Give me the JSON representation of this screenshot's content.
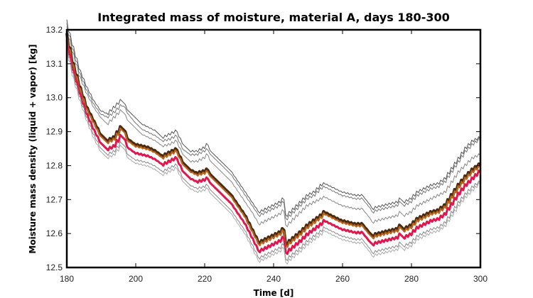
{
  "chart_data": {
    "type": "line",
    "title": "Integrated mass of moisture, material A, days 180-300",
    "xlabel": "Time [d]",
    "ylabel": "Moisture mass density (liquid + vapor) [kg]",
    "xlim": [
      180,
      300
    ],
    "ylim": [
      12.5,
      13.2
    ],
    "xticks": [
      180,
      200,
      220,
      240,
      260,
      280,
      300
    ],
    "xtick_labels": [
      "180",
      "200",
      "220",
      "240",
      "260",
      "280",
      "300"
    ],
    "yticks": [
      12.5,
      12.6,
      12.7,
      12.8,
      12.9,
      13.0,
      13.1,
      13.2
    ],
    "ytick_labels": [
      "12.5",
      "12.6",
      "12.7",
      "12.8",
      "12.9",
      "13.0",
      "13.1",
      "13.2"
    ],
    "grid": false,
    "legend": "none",
    "x": [
      180,
      182,
      184,
      186,
      188,
      190,
      192,
      194,
      196,
      197,
      198,
      200,
      202,
      204,
      206,
      208,
      210,
      212,
      213,
      214,
      216,
      218,
      220,
      221,
      222,
      224,
      226,
      228,
      230,
      232,
      234,
      236,
      238,
      240,
      242,
      243,
      244,
      245,
      248,
      250,
      252,
      254,
      255,
      256,
      258,
      260,
      262,
      264,
      266,
      268,
      269,
      270,
      272,
      274,
      276,
      277,
      278,
      280,
      282,
      284,
      286,
      288,
      290,
      292,
      294,
      296,
      298,
      300
    ],
    "series": [
      {
        "name": "upper-envelope-outer",
        "color": "#555555",
        "values": [
          13.23,
          13.15,
          13.08,
          13.03,
          12.99,
          12.96,
          12.95,
          12.97,
          12.99,
          12.98,
          12.96,
          12.94,
          12.92,
          12.91,
          12.9,
          12.88,
          12.89,
          12.9,
          12.88,
          12.86,
          12.84,
          12.84,
          12.85,
          12.86,
          12.84,
          12.82,
          12.8,
          12.78,
          12.75,
          12.72,
          12.69,
          12.66,
          12.67,
          12.68,
          12.69,
          12.7,
          12.65,
          12.66,
          12.69,
          12.71,
          12.72,
          12.74,
          12.745,
          12.74,
          12.73,
          12.72,
          12.715,
          12.71,
          12.71,
          12.685,
          12.67,
          12.675,
          12.68,
          12.685,
          12.69,
          12.7,
          12.69,
          12.7,
          12.72,
          12.73,
          12.74,
          12.745,
          12.76,
          12.79,
          12.82,
          12.85,
          12.87,
          12.88
        ]
      },
      {
        "name": "upper-envelope-inner",
        "color": "#777777",
        "values": [
          13.22,
          13.14,
          13.07,
          13.02,
          12.98,
          12.95,
          12.94,
          12.955,
          12.975,
          12.97,
          12.95,
          12.925,
          12.905,
          12.895,
          12.885,
          12.87,
          12.875,
          12.885,
          12.865,
          12.845,
          12.83,
          12.83,
          12.84,
          12.845,
          12.83,
          12.81,
          12.79,
          12.77,
          12.74,
          12.71,
          12.68,
          12.65,
          12.66,
          12.67,
          12.68,
          12.69,
          12.64,
          12.65,
          12.68,
          12.7,
          12.71,
          12.73,
          12.735,
          12.73,
          12.72,
          12.71,
          12.705,
          12.7,
          12.7,
          12.675,
          12.66,
          12.665,
          12.67,
          12.675,
          12.68,
          12.69,
          12.68,
          12.69,
          12.71,
          12.72,
          12.73,
          12.735,
          12.75,
          12.78,
          12.81,
          12.84,
          12.86,
          12.875
        ]
      },
      {
        "name": "upper-stepped",
        "color": "#888888",
        "values": [
          13.21,
          13.13,
          13.06,
          13.01,
          12.97,
          12.94,
          12.92,
          12.94,
          12.96,
          12.95,
          12.93,
          12.91,
          12.89,
          12.88,
          12.87,
          12.855,
          12.86,
          12.87,
          12.85,
          12.83,
          12.81,
          12.81,
          12.82,
          12.83,
          12.81,
          12.79,
          12.77,
          12.75,
          12.72,
          12.69,
          12.66,
          12.625,
          12.635,
          12.645,
          12.655,
          12.665,
          12.62,
          12.63,
          12.66,
          12.68,
          12.69,
          12.7,
          12.705,
          12.7,
          12.69,
          12.68,
          12.675,
          12.67,
          12.67,
          12.645,
          12.63,
          12.635,
          12.64,
          12.645,
          12.65,
          12.66,
          12.65,
          12.66,
          12.68,
          12.69,
          12.7,
          12.71,
          12.72,
          12.75,
          12.78,
          12.8,
          12.82,
          12.83
        ]
      },
      {
        "name": "mean-dark",
        "color": "#4a2a10",
        "values": [
          13.19,
          13.1,
          13.03,
          12.97,
          12.93,
          12.89,
          12.87,
          12.88,
          12.91,
          12.9,
          12.875,
          12.86,
          12.855,
          12.85,
          12.84,
          12.825,
          12.835,
          12.845,
          12.825,
          12.805,
          12.785,
          12.775,
          12.78,
          12.785,
          12.77,
          12.75,
          12.73,
          12.71,
          12.68,
          12.65,
          12.61,
          12.57,
          12.58,
          12.59,
          12.6,
          12.61,
          12.565,
          12.575,
          12.6,
          12.62,
          12.635,
          12.65,
          12.66,
          12.655,
          12.645,
          12.635,
          12.63,
          12.625,
          12.625,
          12.6,
          12.59,
          12.595,
          12.6,
          12.605,
          12.61,
          12.62,
          12.61,
          12.62,
          12.64,
          12.65,
          12.66,
          12.665,
          12.68,
          12.71,
          12.74,
          12.765,
          12.785,
          12.8
        ]
      },
      {
        "name": "mean-orange",
        "color": "#b8641a",
        "values": [
          13.185,
          13.095,
          13.025,
          12.965,
          12.925,
          12.885,
          12.865,
          12.875,
          12.905,
          12.895,
          12.87,
          12.855,
          12.85,
          12.845,
          12.835,
          12.82,
          12.83,
          12.84,
          12.82,
          12.8,
          12.78,
          12.77,
          12.775,
          12.78,
          12.765,
          12.745,
          12.725,
          12.705,
          12.675,
          12.645,
          12.605,
          12.565,
          12.575,
          12.585,
          12.595,
          12.605,
          12.56,
          12.57,
          12.595,
          12.615,
          12.63,
          12.645,
          12.655,
          12.65,
          12.64,
          12.63,
          12.625,
          12.62,
          12.62,
          12.595,
          12.585,
          12.59,
          12.595,
          12.6,
          12.605,
          12.615,
          12.605,
          12.615,
          12.635,
          12.645,
          12.655,
          12.66,
          12.675,
          12.705,
          12.735,
          12.76,
          12.78,
          12.795
        ]
      },
      {
        "name": "mean-red",
        "color": "#e0174f",
        "values": [
          13.17,
          13.08,
          13.01,
          12.95,
          12.905,
          12.865,
          12.845,
          12.855,
          12.885,
          12.875,
          12.85,
          12.835,
          12.83,
          12.825,
          12.815,
          12.8,
          12.81,
          12.82,
          12.8,
          12.78,
          12.76,
          12.75,
          12.755,
          12.76,
          12.745,
          12.725,
          12.705,
          12.685,
          12.655,
          12.625,
          12.585,
          12.545,
          12.555,
          12.565,
          12.575,
          12.585,
          12.54,
          12.55,
          12.575,
          12.595,
          12.61,
          12.625,
          12.635,
          12.63,
          12.62,
          12.61,
          12.605,
          12.6,
          12.6,
          12.575,
          12.565,
          12.57,
          12.575,
          12.58,
          12.585,
          12.595,
          12.585,
          12.595,
          12.615,
          12.625,
          12.635,
          12.64,
          12.655,
          12.685,
          12.715,
          12.74,
          12.76,
          12.78
        ]
      },
      {
        "name": "lower-stepped",
        "color": "#888888",
        "values": [
          13.16,
          13.07,
          13.0,
          12.94,
          12.89,
          12.85,
          12.83,
          12.84,
          12.865,
          12.855,
          12.83,
          12.815,
          12.81,
          12.805,
          12.795,
          12.78,
          12.79,
          12.8,
          12.78,
          12.76,
          12.74,
          12.73,
          12.735,
          12.74,
          12.725,
          12.705,
          12.685,
          12.665,
          12.635,
          12.605,
          12.565,
          12.525,
          12.535,
          12.545,
          12.555,
          12.565,
          12.52,
          12.53,
          12.555,
          12.575,
          12.59,
          12.605,
          12.615,
          12.61,
          12.6,
          12.59,
          12.585,
          12.58,
          12.58,
          12.555,
          12.54,
          12.545,
          12.55,
          12.555,
          12.56,
          12.57,
          12.56,
          12.57,
          12.59,
          12.6,
          12.61,
          12.615,
          12.63,
          12.66,
          12.69,
          12.715,
          12.735,
          12.75
        ]
      },
      {
        "name": "lower-envelope",
        "color": "#aaaaaa",
        "values": [
          13.15,
          13.06,
          12.99,
          12.93,
          12.88,
          12.84,
          12.82,
          12.83,
          12.855,
          12.845,
          12.82,
          12.805,
          12.8,
          12.795,
          12.785,
          12.77,
          12.78,
          12.79,
          12.77,
          12.75,
          12.73,
          12.72,
          12.725,
          12.73,
          12.715,
          12.695,
          12.675,
          12.655,
          12.625,
          12.595,
          12.555,
          12.515,
          12.525,
          12.535,
          12.545,
          12.555,
          12.51,
          12.52,
          12.545,
          12.565,
          12.58,
          12.595,
          12.605,
          12.6,
          12.59,
          12.58,
          12.575,
          12.57,
          12.57,
          12.545,
          12.53,
          12.535,
          12.54,
          12.545,
          12.55,
          12.56,
          12.55,
          12.56,
          12.58,
          12.59,
          12.6,
          12.605,
          12.62,
          12.65,
          12.68,
          12.705,
          12.725,
          12.745
        ]
      }
    ]
  }
}
